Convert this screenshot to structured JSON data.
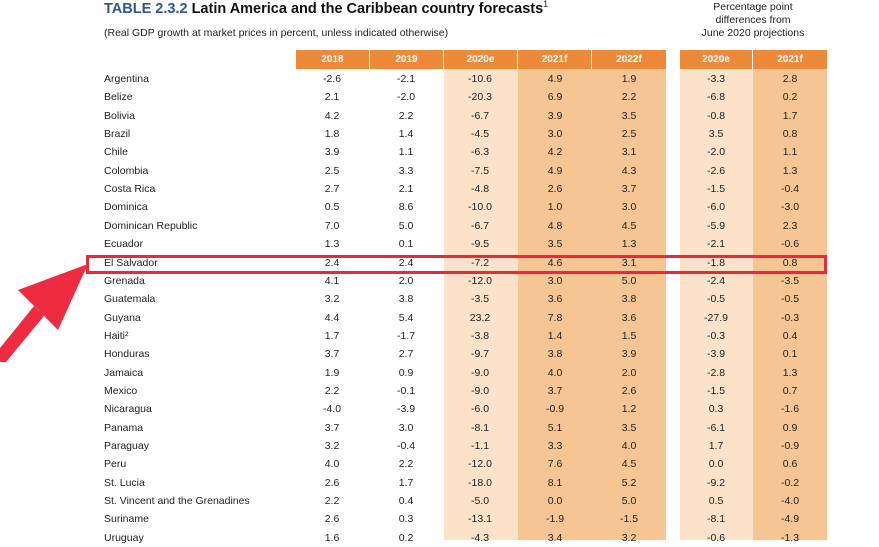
{
  "table": {
    "number": "TABLE 2.3.2",
    "title": "Latin America and the Caribbean country forecasts",
    "title_sup": "1",
    "subtitle": "(Real GDP growth at market prices in percent, unless indicated otherwise)",
    "diff_header_line1": "Percentage point",
    "diff_header_line2": "differences from",
    "diff_header_line3": "June 2020 projections",
    "columns": [
      "2018",
      "2019",
      "2020e",
      "2021f",
      "2022f"
    ],
    "diff_columns": [
      "2020e",
      "2021f"
    ],
    "highlighted_country": "El Salvador",
    "rows": [
      {
        "country": "Argentina",
        "values": [
          "-2.6",
          "-2.1",
          "-10.6",
          "4.9",
          "1.9"
        ],
        "diffs": [
          "-3.3",
          "2.8"
        ]
      },
      {
        "country": "Belize",
        "values": [
          "2.1",
          "-2.0",
          "-20.3",
          "6.9",
          "2.2"
        ],
        "diffs": [
          "-6.8",
          "0.2"
        ]
      },
      {
        "country": "Bolivia",
        "values": [
          "4.2",
          "2.2",
          "-6.7",
          "3.9",
          "3.5"
        ],
        "diffs": [
          "-0.8",
          "1.7"
        ]
      },
      {
        "country": "Brazil",
        "values": [
          "1.8",
          "1.4",
          "-4.5",
          "3.0",
          "2.5"
        ],
        "diffs": [
          "3.5",
          "0.8"
        ]
      },
      {
        "country": "Chile",
        "values": [
          "3.9",
          "1.1",
          "-6.3",
          "4.2",
          "3.1"
        ],
        "diffs": [
          "-2.0",
          "1.1"
        ]
      },
      {
        "country": "Colombia",
        "values": [
          "2.5",
          "3.3",
          "-7.5",
          "4.9",
          "4.3"
        ],
        "diffs": [
          "-2.6",
          "1.3"
        ]
      },
      {
        "country": "Costa Rica",
        "values": [
          "2.7",
          "2.1",
          "-4.8",
          "2.6",
          "3.7"
        ],
        "diffs": [
          "-1.5",
          "-0.4"
        ]
      },
      {
        "country": "Dominica",
        "values": [
          "0.5",
          "8.6",
          "-10.0",
          "1.0",
          "3.0"
        ],
        "diffs": [
          "-6.0",
          "-3.0"
        ]
      },
      {
        "country": "Dominican Republic",
        "values": [
          "7.0",
          "5.0",
          "-6.7",
          "4.8",
          "4.5"
        ],
        "diffs": [
          "-5.9",
          "2.3"
        ]
      },
      {
        "country": "Ecuador",
        "values": [
          "1.3",
          "0.1",
          "-9.5",
          "3.5",
          "1.3"
        ],
        "diffs": [
          "-2.1",
          "-0.6"
        ]
      },
      {
        "country": "El Salvador",
        "values": [
          "2.4",
          "2.4",
          "-7.2",
          "4.6",
          "3.1"
        ],
        "diffs": [
          "-1.8",
          "0.8"
        ]
      },
      {
        "country": "Grenada",
        "values": [
          "4.1",
          "2.0",
          "-12.0",
          "3.0",
          "5.0"
        ],
        "diffs": [
          "-2.4",
          "-3.5"
        ]
      },
      {
        "country": "Guatemala",
        "values": [
          "3.2",
          "3.8",
          "-3.5",
          "3.6",
          "3.8"
        ],
        "diffs": [
          "-0.5",
          "-0.5"
        ]
      },
      {
        "country": "Guyana",
        "values": [
          "4.4",
          "5.4",
          "23.2",
          "7.8",
          "3.6"
        ],
        "diffs": [
          "-27.9",
          "-0.3"
        ]
      },
      {
        "country": "Haiti²",
        "values": [
          "1.7",
          "-1.7",
          "-3.8",
          "1.4",
          "1.5"
        ],
        "diffs": [
          "-0.3",
          "0.4"
        ]
      },
      {
        "country": "Honduras",
        "values": [
          "3.7",
          "2.7",
          "-9.7",
          "3.8",
          "3.9"
        ],
        "diffs": [
          "-3.9",
          "0.1"
        ]
      },
      {
        "country": "Jamaica",
        "values": [
          "1.9",
          "0.9",
          "-9.0",
          "4.0",
          "2.0"
        ],
        "diffs": [
          "-2.8",
          "1.3"
        ]
      },
      {
        "country": "Mexico",
        "values": [
          "2.2",
          "-0.1",
          "-9.0",
          "3.7",
          "2.6"
        ],
        "diffs": [
          "-1.5",
          "0.7"
        ]
      },
      {
        "country": "Nicaragua",
        "values": [
          "-4.0",
          "-3.9",
          "-6.0",
          "-0.9",
          "1.2"
        ],
        "diffs": [
          "0.3",
          "-1.6"
        ]
      },
      {
        "country": "Panama",
        "values": [
          "3.7",
          "3.0",
          "-8.1",
          "5.1",
          "3.5"
        ],
        "diffs": [
          "-6.1",
          "0.9"
        ]
      },
      {
        "country": "Paraguay",
        "values": [
          "3.2",
          "-0.4",
          "-1.1",
          "3.3",
          "4.0"
        ],
        "diffs": [
          "1.7",
          "-0.9"
        ]
      },
      {
        "country": "Peru",
        "values": [
          "4.0",
          "2.2",
          "-12.0",
          "7.6",
          "4.5"
        ],
        "diffs": [
          "0.0",
          "0.6"
        ]
      },
      {
        "country": "St. Lucia",
        "values": [
          "2.6",
          "1.7",
          "-18.0",
          "8.1",
          "5.2"
        ],
        "diffs": [
          "-9.2",
          "-0.2"
        ]
      },
      {
        "country": "St. Vincent and the Grenadines",
        "values": [
          "2.2",
          "0.4",
          "-5.0",
          "0.0",
          "5.0"
        ],
        "diffs": [
          "0.5",
          "-4.0"
        ]
      },
      {
        "country": "Suriname",
        "values": [
          "2.6",
          "0.3",
          "-13.1",
          "-1.9",
          "-1.5"
        ],
        "diffs": [
          "-8.1",
          "-4.9"
        ]
      },
      {
        "country": "Uruguay",
        "values": [
          "1.6",
          "0.2",
          "-4.3",
          "3.4",
          "3.2"
        ],
        "diffs": [
          "-0.6",
          "-1.3"
        ]
      }
    ]
  },
  "colors": {
    "header_orange": "#ec8a3a",
    "col_2020e_bg": "#fbe2c8",
    "col_forecast_bg": "#f6c594",
    "highlight_box": "#e8293a",
    "arrow": "#ef2b42",
    "title_number": "#2f5597"
  },
  "annotation": {
    "arrow_icon": "red-arrow-icon"
  }
}
